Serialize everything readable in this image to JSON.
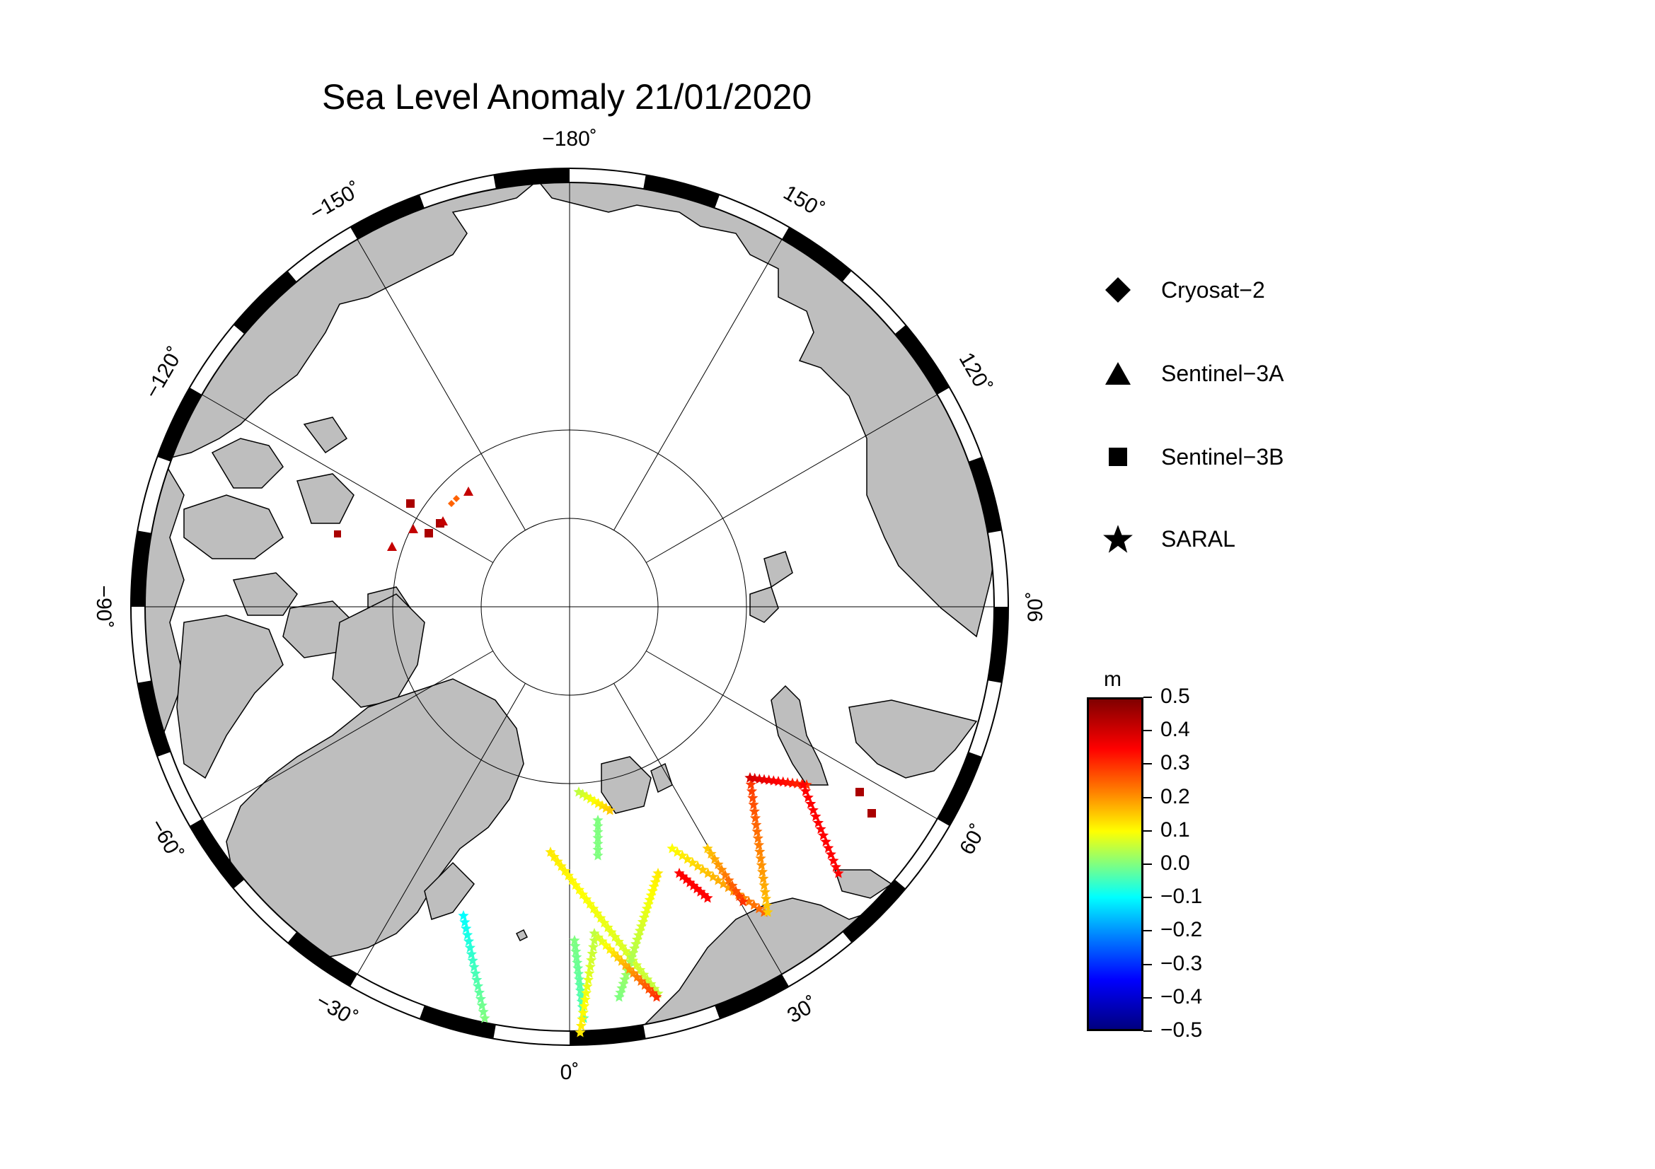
{
  "title": "Sea Level Anomaly 21/01/2020",
  "longitude_labels": [
    {
      "lon": 180,
      "text": "−180˚"
    },
    {
      "lon": 150,
      "text": "150˚"
    },
    {
      "lon": 120,
      "text": "120˚"
    },
    {
      "lon": 90,
      "text": "90˚"
    },
    {
      "lon": 60,
      "text": "60˚"
    },
    {
      "lon": 30,
      "text": "30˚"
    },
    {
      "lon": 0,
      "text": "0˚"
    },
    {
      "lon": -30,
      "text": "−30˚"
    },
    {
      "lon": -60,
      "text": "−60˚"
    },
    {
      "lon": -90,
      "text": "−90˚"
    },
    {
      "lon": -120,
      "text": "−120˚"
    },
    {
      "lon": -150,
      "text": "−150˚"
    }
  ],
  "legend": {
    "items": [
      {
        "symbol": "diamond",
        "label": "Cryosat−2"
      },
      {
        "symbol": "triangle",
        "label": "Sentinel−3A"
      },
      {
        "symbol": "square",
        "label": "Sentinel−3B"
      },
      {
        "symbol": "star",
        "label": "SARAL"
      }
    ]
  },
  "colorbar": {
    "unit": "m",
    "ticks": [
      "0.5",
      "0.4",
      "0.3",
      "0.2",
      "0.1",
      "0.0",
      "−0.1",
      "−0.2",
      "−0.3",
      "−0.4",
      "−0.5"
    ],
    "range": [
      -0.5,
      0.5
    ],
    "colormap": "jet"
  },
  "colors": {
    "land": "#bebebe",
    "ocean": "#ffffff",
    "frame": "#000000"
  }
}
